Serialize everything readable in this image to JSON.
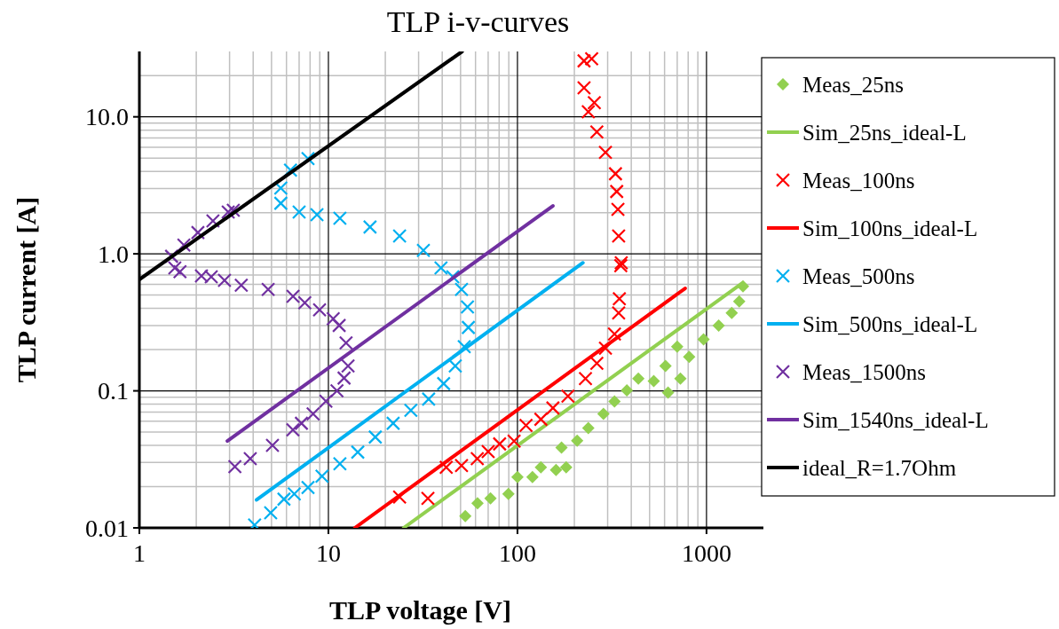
{
  "chart_data": {
    "type": "scatter",
    "title": "TLP i-v-curves",
    "xlabel": "TLP voltage [V]",
    "ylabel": "TLP current [A]",
    "log": "xy",
    "grid": true,
    "legend": "right",
    "xlim": [
      1,
      2000
    ],
    "xticks": [
      1,
      10,
      100,
      1000
    ],
    "ylim": [
      0.01,
      30
    ],
    "yticks": [
      {
        "value": 0.01,
        "label": "0.01"
      },
      {
        "value": 0.1,
        "label": "0.1"
      },
      {
        "value": 1,
        "label": "1.0"
      },
      {
        "value": 10,
        "label": "10.0"
      }
    ],
    "series": [
      {
        "name": "Meas_25ns",
        "marker": "diamond",
        "color": "#92d050",
        "x": [
          53,
          61.5,
          72,
          89.6,
          100,
          120,
          133,
          160,
          181,
          171,
          207,
          237,
          285,
          326,
          379,
          436,
          526,
          626,
          607,
          728,
          700,
          810,
          965,
          1160,
          1360,
          1490,
          1560
        ],
        "values": [
          0.0122,
          0.0151,
          0.0164,
          0.0177,
          0.0235,
          0.0235,
          0.0277,
          0.0265,
          0.0277,
          0.0385,
          0.0433,
          0.0535,
          0.068,
          0.0836,
          0.101,
          0.123,
          0.118,
          0.097,
          0.152,
          0.123,
          0.21,
          0.177,
          0.238,
          0.3,
          0.37,
          0.45,
          0.58
        ]
      },
      {
        "name": "Sim_25ns_ideal-L",
        "type": "line",
        "color": "#92d050",
        "x": [
          25,
          1540
        ],
        "values": [
          0.01,
          0.61
        ]
      },
      {
        "name": "Meas_100ns",
        "marker": "cross",
        "color": "#ff0000",
        "x": [
          23.8,
          33.6,
          42,
          50.6,
          61.3,
          70,
          80.5,
          96,
          111,
          133,
          154,
          185,
          229,
          263,
          292,
          326,
          343,
          346,
          354,
          352,
          343,
          340,
          335,
          330,
          292,
          263,
          255,
          237,
          225,
          225,
          247
        ],
        "values": [
          0.0168,
          0.0164,
          0.0277,
          0.0285,
          0.032,
          0.036,
          0.041,
          0.043,
          0.056,
          0.062,
          0.075,
          0.0915,
          0.123,
          0.159,
          0.205,
          0.26,
          0.37,
          0.47,
          0.86,
          0.82,
          1.35,
          2.11,
          2.85,
          3.84,
          5.5,
          7.75,
          12.7,
          10.9,
          16.3,
          25.6,
          26.5
        ]
      },
      {
        "name": "Sim_100ns_ideal-L",
        "type": "line",
        "color": "#ff0000",
        "x": [
          13.8,
          771
        ],
        "values": [
          0.01,
          0.56
        ]
      },
      {
        "name": "Meas_500ns",
        "marker": "cross",
        "color": "#00b0f0",
        "x": [
          4.07,
          4.95,
          5.82,
          6.6,
          7.8,
          9.25,
          11.5,
          14.3,
          17.7,
          22,
          27.3,
          33.9,
          40.7,
          46.9,
          52.3,
          55,
          54.4,
          50.6,
          45.5,
          39.4,
          31.8,
          23.8,
          16.6,
          11.5,
          8.7,
          7,
          5.6,
          5.6,
          6.3,
          7.8
        ],
        "values": [
          0.0105,
          0.0129,
          0.0162,
          0.0177,
          0.0197,
          0.0238,
          0.0294,
          0.0357,
          0.046,
          0.058,
          0.072,
          0.087,
          0.113,
          0.152,
          0.21,
          0.29,
          0.41,
          0.55,
          0.68,
          0.79,
          1.06,
          1.35,
          1.57,
          1.82,
          1.93,
          2.02,
          2.34,
          3.02,
          4.08,
          4.96
        ]
      },
      {
        "name": "Sim_500ns_ideal-L",
        "type": "line",
        "color": "#00b0f0",
        "x": [
          4.17,
          222
        ],
        "values": [
          0.016,
          0.86
        ]
      },
      {
        "name": "Meas_1500ns",
        "marker": "cross",
        "color": "#7030a0",
        "x": [
          3.2,
          3.86,
          5.06,
          6.49,
          7.2,
          8.3,
          9.7,
          11.1,
          12.1,
          12.7,
          12.4,
          11.4,
          10.6,
          8.98,
          7.5,
          6.5,
          4.8,
          3.46,
          2.82,
          2.4,
          2.13,
          1.64,
          1.54,
          1.48,
          1.72,
          2.04,
          2.45,
          2.95,
          3.14
        ],
        "values": [
          0.028,
          0.032,
          0.04,
          0.052,
          0.058,
          0.068,
          0.084,
          0.1,
          0.124,
          0.152,
          0.224,
          0.3,
          0.336,
          0.39,
          0.44,
          0.49,
          0.55,
          0.59,
          0.64,
          0.68,
          0.69,
          0.74,
          0.79,
          0.96,
          1.16,
          1.43,
          1.74,
          2.02,
          2.08
        ]
      },
      {
        "name": "Sim_1540ns_ideal-L",
        "type": "line",
        "color": "#7030a0",
        "x": [
          2.92,
          154
        ],
        "values": [
          0.043,
          2.24
        ]
      },
      {
        "name": "ideal_R=1.7Ohm",
        "type": "line",
        "color": "#000000",
        "x": [
          1,
          51
        ],
        "values": [
          0.65,
          30
        ]
      }
    ]
  }
}
